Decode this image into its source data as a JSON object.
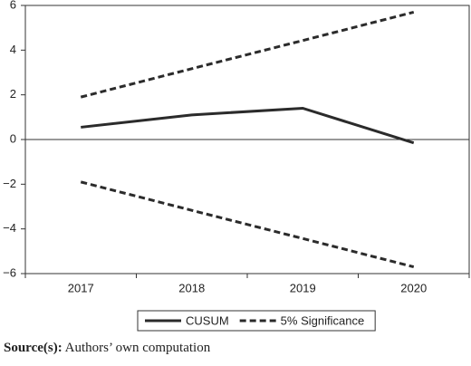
{
  "chart_data": {
    "type": "line",
    "categories": [
      "2017",
      "2018",
      "2019",
      "2020"
    ],
    "series": [
      {
        "name": "CUSUM",
        "color": "#2b2b2b",
        "style": "solid",
        "values": [
          0.55,
          1.1,
          1.4,
          -0.15
        ]
      },
      {
        "name": "5% Significance",
        "color": "#2b2b2b",
        "style": "dashed",
        "upper": [
          1.9,
          3.17,
          4.43,
          5.7
        ],
        "lower": [
          -1.9,
          -3.17,
          -4.43,
          -5.7
        ]
      }
    ],
    "ylim": [
      -6,
      6
    ],
    "yticks": [
      {
        "value": -6,
        "label": "−6"
      },
      {
        "value": -4,
        "label": "−4"
      },
      {
        "value": -2,
        "label": "−2"
      },
      0,
      2,
      4,
      6
    ],
    "zero_line": true,
    "legend": "bottom",
    "source": {
      "label": "Source(s):",
      "text": "Authors’ own computation"
    }
  }
}
